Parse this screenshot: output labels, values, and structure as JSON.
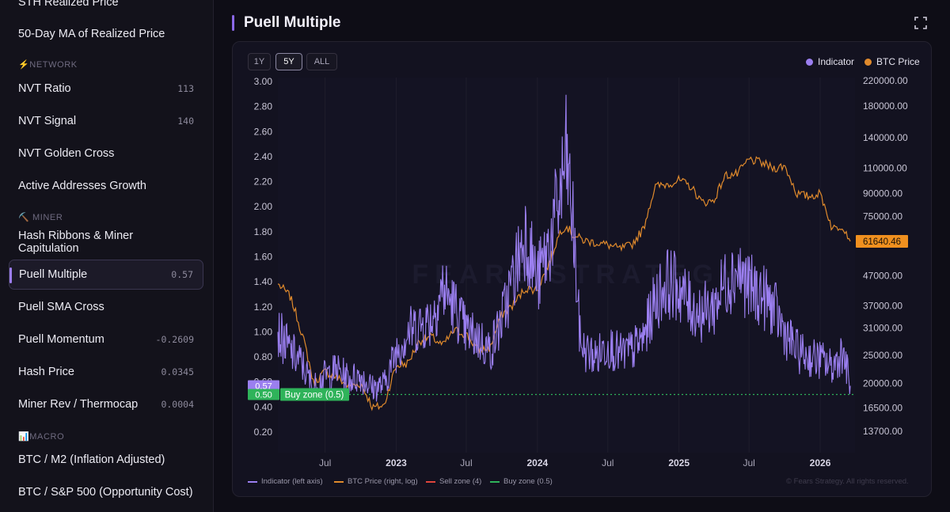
{
  "sidebar": {
    "items": [
      {
        "label": "STH Realized Price",
        "value": ""
      },
      {
        "label": "50-Day MA of Realized Price",
        "value": ""
      },
      {
        "label": "NVT Ratio",
        "value": "113"
      },
      {
        "label": "NVT Signal",
        "value": "140"
      },
      {
        "label": "NVT Golden Cross",
        "value": ""
      },
      {
        "label": "Active Addresses Growth",
        "value": ""
      },
      {
        "label": "Hash Ribbons & Miner Capitulation",
        "value": ""
      },
      {
        "label": "Puell Multiple",
        "value": "0.57"
      },
      {
        "label": "Puell SMA Cross",
        "value": ""
      },
      {
        "label": "Puell Momentum",
        "value": "-0.2609"
      },
      {
        "label": "Hash Price",
        "value": "0.0345"
      },
      {
        "label": "Miner Rev / Thermocap",
        "value": "0.0004"
      },
      {
        "label": "BTC / M2 (Inflation Adjusted)",
        "value": ""
      },
      {
        "label": "BTC / S&P 500 (Opportunity Cost)",
        "value": ""
      }
    ],
    "sections": {
      "network": "⚡NETWORK",
      "miner": "⛏️ MINER",
      "macro": "📊MACRO"
    }
  },
  "main": {
    "title": "Puell Multiple"
  },
  "controls": {
    "ranges": [
      "1Y",
      "5Y",
      "ALL"
    ],
    "selected": "5Y"
  },
  "legend_top": {
    "indicator": "Indicator",
    "btc": "BTC Price"
  },
  "legend_bottom": {
    "indicator": "Indicator (left axis)",
    "btc": "BTC Price (right, log)",
    "sell": "Sell zone (4)",
    "buy": "Buy zone (0.5)"
  },
  "copyright": "© Fears Strategy. All rights reserved.",
  "watermark": "FEARS STRATEGY",
  "colors": {
    "indicator": "#9b7ff0",
    "btc": "#e08a2c",
    "sell": "#e0453c",
    "buy": "#2fb35a"
  },
  "chart_data": {
    "type": "line",
    "left_axis": {
      "ticks": [
        "3.00",
        "2.80",
        "2.60",
        "2.40",
        "2.20",
        "2.00",
        "1.80",
        "1.60",
        "1.40",
        "1.20",
        "1.00",
        "0.80",
        "0.60",
        "0.40",
        "0.20"
      ],
      "range": [
        0.15,
        3.0
      ]
    },
    "right_axis": {
      "ticks": [
        "220000.00",
        "180000.00",
        "140000.00",
        "110000.00",
        "90000.00",
        "75000.00",
        "61640.46",
        "47000.00",
        "37000.00",
        "31000.00",
        "25000.00",
        "20000.00",
        "16500.00",
        "13700.00"
      ],
      "scale": "log"
    },
    "x_ticks": [
      "Jul",
      "2023",
      "Jul",
      "2024",
      "Jul",
      "2025",
      "Jul",
      "2026"
    ],
    "x_range": [
      "2022-03-01",
      "2026-04-01"
    ],
    "series": [
      {
        "name": "Indicator",
        "x": [
          "2022-03-01",
          "2022-04-01",
          "2022-05-01",
          "2022-06-01",
          "2022-07-01",
          "2022-08-01",
          "2022-09-01",
          "2022-10-01",
          "2022-11-01",
          "2022-12-01",
          "2023-01-01",
          "2023-02-01",
          "2023-03-01",
          "2023-04-01",
          "2023-05-01",
          "2023-06-01",
          "2023-07-01",
          "2023-08-01",
          "2023-09-01",
          "2023-10-01",
          "2023-11-01",
          "2023-12-01",
          "2024-01-01",
          "2024-02-01",
          "2024-03-01",
          "2024-03-15",
          "2024-04-01",
          "2024-04-20",
          "2024-05-01",
          "2024-06-01",
          "2024-07-01",
          "2024-08-01",
          "2024-09-01",
          "2024-10-01",
          "2024-11-01",
          "2024-12-01",
          "2025-01-01",
          "2025-02-01",
          "2025-03-01",
          "2025-04-01",
          "2025-05-01",
          "2025-06-01",
          "2025-07-01",
          "2025-08-01",
          "2025-09-01",
          "2025-10-01",
          "2025-11-01",
          "2025-12-01",
          "2026-01-01",
          "2026-02-01",
          "2026-03-01",
          "2026-03-20"
        ],
        "values": [
          1.0,
          0.85,
          0.75,
          0.55,
          0.65,
          0.7,
          0.62,
          0.65,
          0.55,
          0.58,
          0.85,
          1.0,
          1.05,
          1.1,
          1.35,
          1.2,
          1.0,
          0.95,
          0.85,
          1.1,
          1.45,
          1.8,
          1.4,
          1.7,
          2.1,
          2.4,
          1.9,
          0.95,
          0.85,
          0.8,
          0.9,
          0.82,
          0.85,
          0.95,
          1.25,
          1.4,
          1.35,
          1.2,
          1.15,
          1.2,
          1.4,
          1.5,
          1.35,
          1.3,
          1.2,
          1.0,
          0.85,
          0.8,
          0.78,
          0.72,
          0.85,
          0.57
        ]
      },
      {
        "name": "BTC Price",
        "x": [
          "2022-03-01",
          "2022-04-01",
          "2022-05-01",
          "2022-06-01",
          "2022-07-01",
          "2022-08-01",
          "2022-09-01",
          "2022-10-01",
          "2022-11-01",
          "2022-12-01",
          "2023-01-01",
          "2023-02-01",
          "2023-03-01",
          "2023-04-01",
          "2023-05-01",
          "2023-06-01",
          "2023-07-01",
          "2023-08-01",
          "2023-09-01",
          "2023-10-01",
          "2023-11-01",
          "2023-12-01",
          "2024-01-01",
          "2024-02-01",
          "2024-03-01",
          "2024-03-15",
          "2024-04-01",
          "2024-05-01",
          "2024-06-01",
          "2024-07-01",
          "2024-08-01",
          "2024-09-01",
          "2024-10-01",
          "2024-11-01",
          "2024-12-01",
          "2025-01-01",
          "2025-02-01",
          "2025-03-01",
          "2025-04-01",
          "2025-05-01",
          "2025-06-01",
          "2025-07-01",
          "2025-08-01",
          "2025-09-01",
          "2025-10-01",
          "2025-11-01",
          "2025-12-01",
          "2026-01-01",
          "2026-02-01",
          "2026-03-01",
          "2026-03-20"
        ],
        "values": [
          44000,
          40000,
          30000,
          20000,
          22000,
          21000,
          19500,
          20000,
          16500,
          16800,
          23000,
          23500,
          28000,
          29000,
          27000,
          30500,
          29500,
          26000,
          26500,
          34500,
          37500,
          42500,
          42000,
          52000,
          67000,
          70000,
          65000,
          62000,
          61000,
          60000,
          58000,
          60000,
          68000,
          95000,
          97000,
          100000,
          95000,
          84000,
          85000,
          104000,
          105000,
          118000,
          115000,
          110000,
          112000,
          90000,
          88000,
          90000,
          68000,
          70000,
          61640.46
        ]
      }
    ],
    "zones": [
      {
        "name": "Sell zone (4)",
        "value": 4
      },
      {
        "name": "Buy zone (0.5)",
        "value": 0.5
      }
    ],
    "labels": {
      "current_indicator": "0.57",
      "buy_zone_value": "0.50",
      "buy_zone_label": "Buy zone (0.5)",
      "current_price": "61640.46"
    }
  }
}
